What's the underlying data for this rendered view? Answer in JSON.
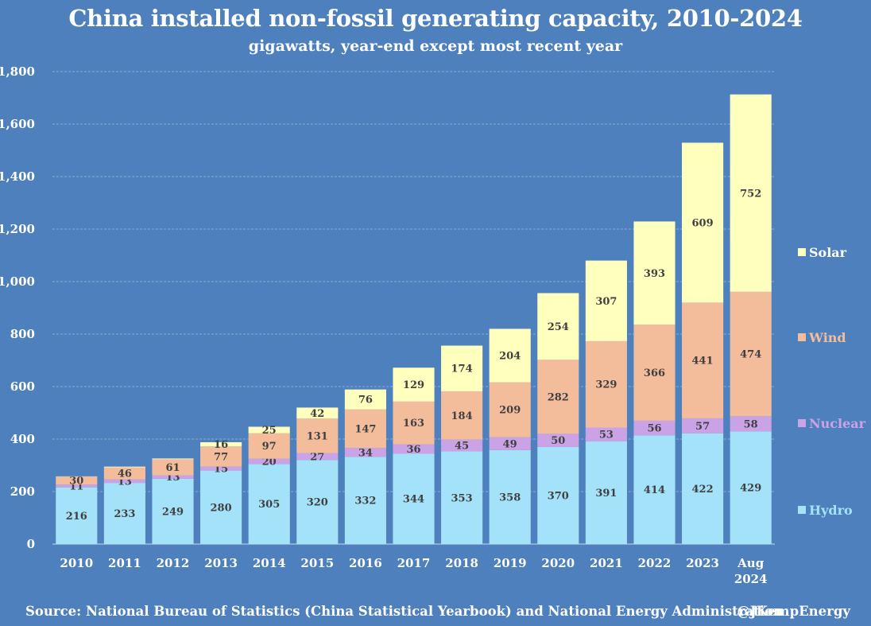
{
  "chart_data": {
    "type": "bar",
    "stacked": true,
    "title": "China installed non-fossil generating capacity, 2010-2024",
    "subtitle": "gigawatts, year-end except most recent year",
    "categories": [
      "2010",
      "2011",
      "2012",
      "2013",
      "2014",
      "2015",
      "2016",
      "2017",
      "2018",
      "2019",
      "2020",
      "2021",
      "2022",
      "2023",
      "Aug 2024"
    ],
    "series": [
      {
        "name": "Hydro",
        "color": "#a4e2fa",
        "values": [
          216,
          233,
          249,
          280,
          305,
          320,
          332,
          344,
          353,
          358,
          370,
          391,
          414,
          422,
          429
        ]
      },
      {
        "name": "Nuclear",
        "color": "#caa3e6",
        "values": [
          11,
          13,
          13,
          15,
          20,
          27,
          34,
          36,
          45,
          49,
          50,
          53,
          56,
          57,
          58
        ]
      },
      {
        "name": "Wind",
        "color": "#f3bd9c",
        "values": [
          30,
          46,
          61,
          77,
          97,
          131,
          147,
          163,
          184,
          209,
          282,
          329,
          366,
          441,
          474
        ]
      },
      {
        "name": "Solar",
        "color": "#ffffbe",
        "values": [
          1,
          3,
          3,
          16,
          25,
          42,
          76,
          129,
          174,
          204,
          254,
          307,
          393,
          609,
          752
        ]
      }
    ],
    "data_labels": {
      "Hydro": [
        "216",
        "233",
        "249",
        "280",
        "305",
        "320",
        "332",
        "344",
        "353",
        "358",
        "370",
        "391",
        "414",
        "422",
        "429"
      ],
      "Nuclear": [
        "11",
        "13",
        "13",
        "15",
        "20",
        "27",
        "34",
        "36",
        "45",
        "49",
        "50",
        "53",
        "56",
        "57",
        "58"
      ],
      "Wind": [
        "30",
        "46",
        "61",
        "77",
        "97",
        "131",
        "147",
        "163",
        "184",
        "209",
        "282",
        "329",
        "366",
        "441",
        "474"
      ],
      "Solar": [
        "",
        "",
        "",
        "16",
        "25",
        "42",
        "76",
        "129",
        "174",
        "204",
        "254",
        "307",
        "393",
        "609",
        "752"
      ]
    },
    "ylim": [
      0,
      1800
    ],
    "yticks": [
      0,
      200,
      400,
      600,
      800,
      1000,
      1200,
      1400,
      1600,
      1800
    ],
    "ytick_labels": [
      "0",
      "200",
      "400",
      "600",
      "800",
      "1,000",
      "1,200",
      "1,400",
      "1,600",
      "1,800"
    ],
    "grid": true,
    "legend_position": "right",
    "legend_order": [
      "Solar",
      "Wind",
      "Nuclear",
      "Hydro"
    ]
  },
  "footer": {
    "source": "Source: National Bureau of Statistics (China Statistical Yearbook) and National Energy Administration",
    "handle": "@JKempEnergy"
  }
}
